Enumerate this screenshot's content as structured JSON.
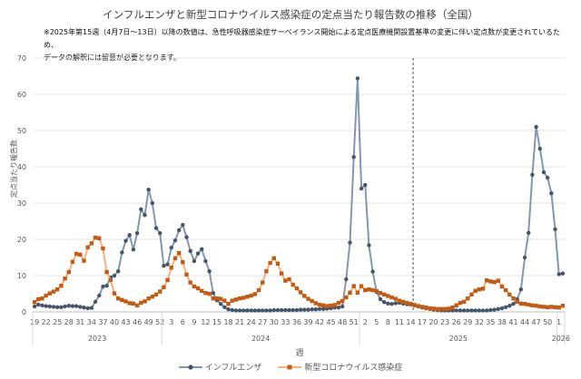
{
  "title": "インフルエンザと新型コロナウイルス感染症の定点当たり報告数の推移（全国）",
  "note_line1": "※2025年第15週（4月7日～13日）以降の数値は、急性呼吸器感染症サーベイランス開始による定点医療機関設置基準の変更に伴い定点数が変更されているため、",
  "note_line2": "データの解釈には留意が必要となります。",
  "chart_data": {
    "type": "line",
    "title": "インフルエンザと新型コロナウイルス感染症の定点当たり報告数の推移（全国）",
    "xlabel": "週",
    "ylabel": "定点当たり報告数",
    "ylim": [
      0,
      70
    ],
    "yticks": [
      0,
      10,
      20,
      30,
      40,
      50,
      60,
      70
    ],
    "grid": true,
    "legend": "bottom",
    "tick_every": 3,
    "vertical_marker": {
      "year": "2025",
      "week": 15,
      "style": "dashed"
    },
    "years": [
      {
        "label": "2023",
        "weeks": [
          19,
          20,
          21,
          22,
          23,
          24,
          25,
          26,
          27,
          28,
          29,
          30,
          31,
          32,
          33,
          34,
          35,
          36,
          37,
          38,
          39,
          40,
          41,
          42,
          43,
          44,
          45,
          46,
          47,
          48,
          49,
          50,
          51,
          52
        ]
      },
      {
        "label": "2024",
        "weeks": [
          1,
          2,
          3,
          4,
          5,
          6,
          7,
          8,
          9,
          10,
          11,
          12,
          13,
          14,
          15,
          16,
          17,
          18,
          19,
          20,
          21,
          22,
          23,
          24,
          25,
          26,
          27,
          28,
          29,
          30,
          31,
          32,
          33,
          34,
          35,
          36,
          37,
          38,
          39,
          40,
          41,
          42,
          43,
          44,
          45,
          46,
          47,
          48,
          49,
          50,
          51,
          52
        ]
      },
      {
        "label": "2025",
        "weeks": [
          1,
          2,
          3,
          4,
          5,
          6,
          7,
          8,
          9,
          10,
          11,
          12,
          13,
          14,
          15,
          16,
          17,
          18,
          19,
          20,
          21,
          22,
          23,
          24,
          25,
          26,
          27,
          28,
          29,
          30,
          31,
          32,
          33,
          34,
          35,
          36,
          37,
          38,
          39,
          40,
          41,
          42,
          43,
          44,
          45,
          46,
          47,
          48,
          49,
          50,
          51,
          52
        ]
      },
      {
        "label": "2026",
        "weeks": [
          1,
          2
        ]
      }
    ],
    "series": [
      {
        "name": "インフルエンザ",
        "line_color": "#8496b0",
        "marker_color": "#44546a",
        "marker": "circle",
        "values": [
          1.5,
          2.0,
          1.8,
          1.6,
          1.5,
          1.4,
          1.3,
          1.3,
          1.5,
          1.7,
          1.6,
          1.6,
          1.4,
          1.2,
          1.0,
          1.1,
          2.8,
          4.5,
          7.0,
          7.2,
          9.5,
          10.0,
          11.2,
          16.4,
          19.6,
          21.2,
          17.2,
          21.7,
          28.3,
          26.7,
          33.7,
          30.0,
          23.1,
          21.7,
          12.7,
          13.1,
          17.7,
          19.7,
          22.5,
          24.0,
          20.6,
          16.8,
          14.0,
          16.1,
          17.3,
          14.0,
          11.2,
          5.2,
          3.2,
          2.2,
          1.3,
          0.7,
          0.5,
          0.4,
          0.4,
          0.4,
          0.4,
          0.4,
          0.4,
          0.4,
          0.4,
          0.4,
          0.4,
          0.5,
          0.5,
          0.5,
          0.5,
          0.5,
          0.5,
          0.5,
          0.6,
          0.6,
          0.6,
          0.7,
          0.7,
          0.8,
          0.8,
          0.9,
          1.0,
          1.2,
          1.2,
          1.5,
          9.0,
          19.1,
          42.7,
          64.4,
          34.0,
          35.0,
          18.4,
          11.1,
          5.5,
          3.5,
          2.7,
          2.3,
          2.2,
          2.4,
          2.5,
          2.3,
          2.1,
          2.0,
          1.8,
          1.5,
          1.2,
          1.0,
          0.8,
          0.6,
          0.5,
          0.4,
          0.4,
          0.4,
          0.4,
          0.4,
          0.4,
          0.4,
          0.4,
          0.4,
          0.4,
          0.4,
          0.4,
          0.4,
          0.5,
          0.6,
          0.8,
          1.0,
          1.3,
          1.7,
          2.2,
          3.5,
          6.2,
          15.0,
          21.8,
          37.8,
          51.0,
          45.0,
          38.5,
          37.0,
          32.7,
          22.8,
          10.4,
          10.6
        ]
      },
      {
        "name": "新型コロナウイルス感染症",
        "line_color": "#f4b183",
        "marker_color": "#c55a11",
        "marker": "square",
        "values": [
          2.7,
          3.5,
          3.7,
          4.5,
          5.1,
          5.6,
          6.2,
          7.2,
          9.2,
          11.0,
          13.8,
          16.0,
          15.8,
          14.1,
          17.8,
          18.9,
          20.5,
          20.3,
          17.5,
          11.0,
          8.8,
          5.1,
          3.7,
          3.3,
          2.9,
          2.4,
          2.3,
          1.8,
          2.5,
          2.9,
          3.7,
          4.2,
          4.8,
          5.6,
          6.8,
          8.8,
          12.2,
          14.8,
          16.2,
          13.7,
          10.3,
          8.1,
          7.0,
          6.5,
          5.8,
          5.2,
          5.0,
          3.7,
          3.7,
          3.6,
          3.1,
          2.2,
          3.1,
          3.4,
          3.7,
          3.9,
          4.2,
          4.5,
          4.9,
          6.0,
          8.1,
          11.2,
          13.5,
          14.8,
          13.3,
          10.6,
          8.6,
          9.0,
          7.5,
          6.5,
          5.4,
          4.4,
          3.6,
          3.0,
          2.4,
          2.0,
          1.8,
          1.6,
          1.7,
          1.9,
          2.5,
          3.0,
          4.0,
          5.3,
          7.1,
          5.3,
          7.1,
          6.0,
          6.2,
          6.0,
          5.7,
          5.2,
          4.8,
          4.4,
          4.0,
          3.6,
          3.1,
          2.8,
          2.5,
          2.2,
          1.9,
          1.6,
          1.4,
          1.2,
          1.0,
          0.9,
          0.8,
          0.8,
          0.8,
          0.9,
          1.2,
          1.8,
          2.5,
          2.8,
          3.7,
          4.8,
          5.8,
          6.2,
          6.4,
          8.7,
          8.4,
          8.2,
          8.6,
          7.0,
          6.0,
          4.8,
          3.7,
          2.8,
          2.3,
          2.2,
          2.0,
          1.8,
          1.7,
          1.5,
          1.4,
          1.3,
          1.4,
          1.3,
          1.2,
          1.7
        ]
      }
    ]
  }
}
